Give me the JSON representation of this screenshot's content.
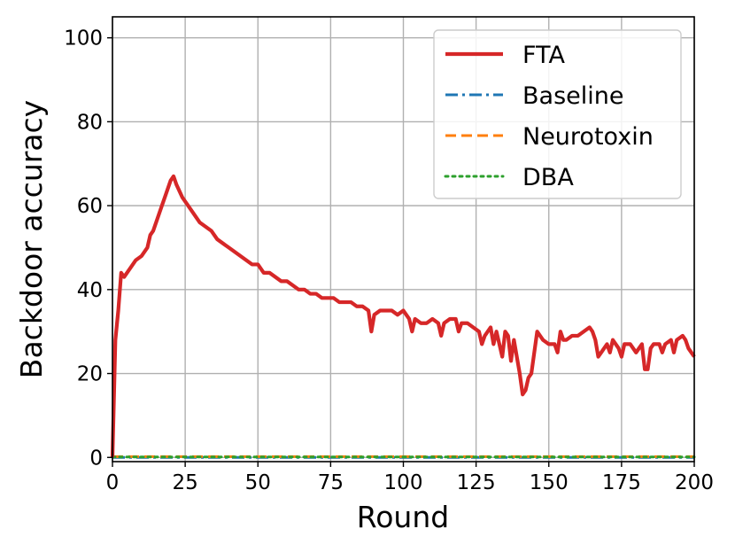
{
  "chart_data": {
    "type": "line",
    "xlabel": "Round",
    "ylabel": "Backdoor accuracy",
    "xlim": [
      0,
      200
    ],
    "ylim": [
      -1,
      105
    ],
    "xticks": [
      0,
      25,
      50,
      75,
      100,
      125,
      150,
      175,
      200
    ],
    "yticks": [
      0,
      20,
      40,
      60,
      80,
      100
    ],
    "grid": true,
    "legend_position": "top-right",
    "series": [
      {
        "name": "FTA",
        "color": "#d62728",
        "style": "solid",
        "points": [
          [
            0,
            0
          ],
          [
            1,
            28
          ],
          [
            2,
            35
          ],
          [
            3,
            44
          ],
          [
            4,
            43
          ],
          [
            6,
            45
          ],
          [
            8,
            47
          ],
          [
            10,
            48
          ],
          [
            11,
            49
          ],
          [
            12,
            50
          ],
          [
            13,
            53
          ],
          [
            14,
            54
          ],
          [
            15,
            56
          ],
          [
            16,
            58
          ],
          [
            17,
            60
          ],
          [
            18,
            62
          ],
          [
            19,
            64
          ],
          [
            20,
            66
          ],
          [
            21,
            67
          ],
          [
            22,
            65
          ],
          [
            24,
            62
          ],
          [
            26,
            60
          ],
          [
            28,
            58
          ],
          [
            29,
            57
          ],
          [
            30,
            56
          ],
          [
            32,
            55
          ],
          [
            34,
            54
          ],
          [
            36,
            52
          ],
          [
            38,
            51
          ],
          [
            40,
            50
          ],
          [
            42,
            49
          ],
          [
            44,
            48
          ],
          [
            46,
            47
          ],
          [
            48,
            46
          ],
          [
            50,
            46
          ],
          [
            52,
            44
          ],
          [
            54,
            44
          ],
          [
            56,
            43
          ],
          [
            58,
            42
          ],
          [
            60,
            42
          ],
          [
            62,
            41
          ],
          [
            64,
            40
          ],
          [
            66,
            40
          ],
          [
            68,
            39
          ],
          [
            70,
            39
          ],
          [
            72,
            38
          ],
          [
            74,
            38
          ],
          [
            76,
            38
          ],
          [
            78,
            37
          ],
          [
            80,
            37
          ],
          [
            82,
            37
          ],
          [
            84,
            36
          ],
          [
            86,
            36
          ],
          [
            88,
            35
          ],
          [
            89,
            30
          ],
          [
            90,
            34
          ],
          [
            92,
            35
          ],
          [
            94,
            35
          ],
          [
            96,
            35
          ],
          [
            98,
            34
          ],
          [
            100,
            35
          ],
          [
            102,
            33
          ],
          [
            103,
            30
          ],
          [
            104,
            33
          ],
          [
            106,
            32
          ],
          [
            108,
            32
          ],
          [
            110,
            33
          ],
          [
            112,
            32
          ],
          [
            113,
            29
          ],
          [
            114,
            32
          ],
          [
            116,
            33
          ],
          [
            118,
            33
          ],
          [
            119,
            30
          ],
          [
            120,
            32
          ],
          [
            122,
            32
          ],
          [
            124,
            31
          ],
          [
            126,
            30
          ],
          [
            127,
            27
          ],
          [
            128,
            29
          ],
          [
            130,
            31
          ],
          [
            131,
            27
          ],
          [
            132,
            30
          ],
          [
            134,
            24
          ],
          [
            135,
            30
          ],
          [
            136,
            29
          ],
          [
            137,
            23
          ],
          [
            138,
            28
          ],
          [
            139,
            24
          ],
          [
            140,
            20
          ],
          [
            141,
            15
          ],
          [
            142,
            16
          ],
          [
            143,
            19
          ],
          [
            144,
            20
          ],
          [
            145,
            25
          ],
          [
            146,
            30
          ],
          [
            147,
            29
          ],
          [
            148,
            28
          ],
          [
            150,
            27
          ],
          [
            152,
            27
          ],
          [
            153,
            25
          ],
          [
            154,
            30
          ],
          [
            155,
            28
          ],
          [
            156,
            28
          ],
          [
            158,
            29
          ],
          [
            160,
            29
          ],
          [
            162,
            30
          ],
          [
            164,
            31
          ],
          [
            165,
            30
          ],
          [
            166,
            28
          ],
          [
            167,
            24
          ],
          [
            168,
            25
          ],
          [
            170,
            27
          ],
          [
            171,
            25
          ],
          [
            172,
            28
          ],
          [
            174,
            26
          ],
          [
            175,
            24
          ],
          [
            176,
            27
          ],
          [
            178,
            27
          ],
          [
            180,
            25
          ],
          [
            181,
            26
          ],
          [
            182,
            27
          ],
          [
            183,
            21
          ],
          [
            184,
            21
          ],
          [
            185,
            26
          ],
          [
            186,
            27
          ],
          [
            188,
            27
          ],
          [
            189,
            25
          ],
          [
            190,
            27
          ],
          [
            192,
            28
          ],
          [
            193,
            25
          ],
          [
            194,
            28
          ],
          [
            196,
            29
          ],
          [
            197,
            28
          ],
          [
            198,
            26
          ],
          [
            199,
            25
          ],
          [
            200,
            24
          ]
        ]
      },
      {
        "name": "Baseline",
        "color": "#1f77b4",
        "style": "dashdot",
        "points": [
          [
            0,
            0
          ],
          [
            200,
            0
          ]
        ]
      },
      {
        "name": "Neurotoxin",
        "color": "#ff7f0e",
        "style": "dashed",
        "points": [
          [
            0,
            0.2
          ],
          [
            200,
            0.2
          ]
        ]
      },
      {
        "name": "DBA",
        "color": "#2ca02c",
        "style": "dotted",
        "points": [
          [
            0,
            0.1
          ],
          [
            200,
            0.1
          ]
        ]
      }
    ]
  }
}
